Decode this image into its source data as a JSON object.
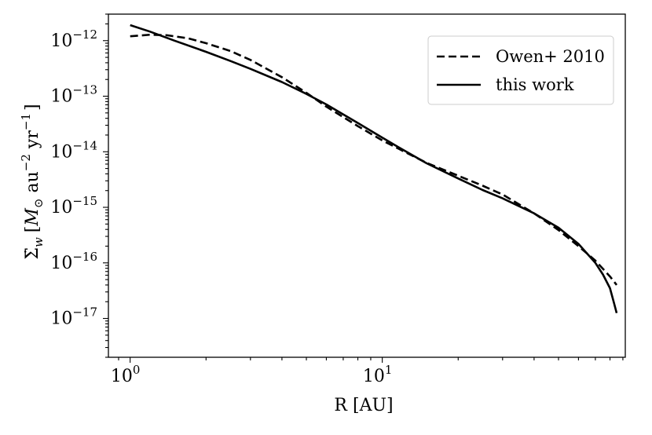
{
  "chart_data": {
    "type": "line",
    "xlabel": "R [AU]",
    "ylabel": "Σ̇w [M⊙ au⁻² yr⁻1]",
    "ylabel_parts": {
      "symbol": "Σ̇",
      "subscript": "w",
      "open": "[",
      "mass": "M",
      "mass_sub": "⊙",
      "unit1": " au",
      "unit1_exp": "−2",
      "unit2": " yr",
      "unit2_exp": "−1",
      "close": "]"
    },
    "x_scale": "log",
    "y_scale": "log",
    "xlim": [
      0.82,
      92
    ],
    "ylim": [
      2e-18,
      3e-12
    ],
    "x_ticks": [
      {
        "base": "10",
        "exp": "0"
      },
      {
        "base": "10",
        "exp": "1"
      }
    ],
    "y_ticks": [
      {
        "base": "10",
        "exp": "−12"
      },
      {
        "base": "10",
        "exp": "−13"
      },
      {
        "base": "10",
        "exp": "−14"
      },
      {
        "base": "10",
        "exp": "−15"
      },
      {
        "base": "10",
        "exp": "−16"
      },
      {
        "base": "10",
        "exp": "−17"
      }
    ],
    "grid": false,
    "legend_position": "top-right",
    "series": [
      {
        "name": "Owen+ 2010",
        "style": "dashed",
        "color": "#000000",
        "x": [
          1.0,
          1.2,
          1.4,
          1.7,
          2.0,
          2.5,
          3.0,
          4.0,
          5.0,
          6.0,
          8.0,
          10.0,
          12.0,
          15.0,
          20.0,
          25.0,
          30.0,
          40.0,
          50.0,
          60.0,
          70.0,
          80.0,
          85.0
        ],
        "y": [
          1.2e-12,
          1.28e-12,
          1.25e-12,
          1.1e-12,
          9e-13,
          6.5e-13,
          4.5e-13,
          2.2e-13,
          1.15e-13,
          6.5e-14,
          2.9e-14,
          1.6e-14,
          1.05e-14,
          6.3e-15,
          3.7e-15,
          2.45e-15,
          1.7e-15,
          7.8e-16,
          3.9e-16,
          2e-16,
          1.1e-16,
          5.7e-17,
          4e-17
        ]
      },
      {
        "name": "this work",
        "style": "solid",
        "color": "#000000",
        "x": [
          1.0,
          1.2,
          1.5,
          2.0,
          2.5,
          3.0,
          4.0,
          5.0,
          6.0,
          8.0,
          10.0,
          12.0,
          15.0,
          20.0,
          25.0,
          30.0,
          40.0,
          50.0,
          60.0,
          70.0,
          75.0,
          80.0,
          83.0,
          85.0
        ],
        "y": [
          1.9e-12,
          1.45e-12,
          1e-12,
          6.3e-13,
          4.3e-13,
          3.1e-13,
          1.8e-13,
          1.1e-13,
          7.1e-14,
          3.3e-14,
          1.8e-14,
          1.1e-14,
          6.2e-15,
          3.3e-15,
          2.05e-15,
          1.45e-15,
          7.8e-16,
          4.3e-16,
          2.2e-16,
          1e-16,
          6.2e-17,
          3.5e-17,
          1.9e-17,
          1.25e-17
        ]
      }
    ]
  }
}
